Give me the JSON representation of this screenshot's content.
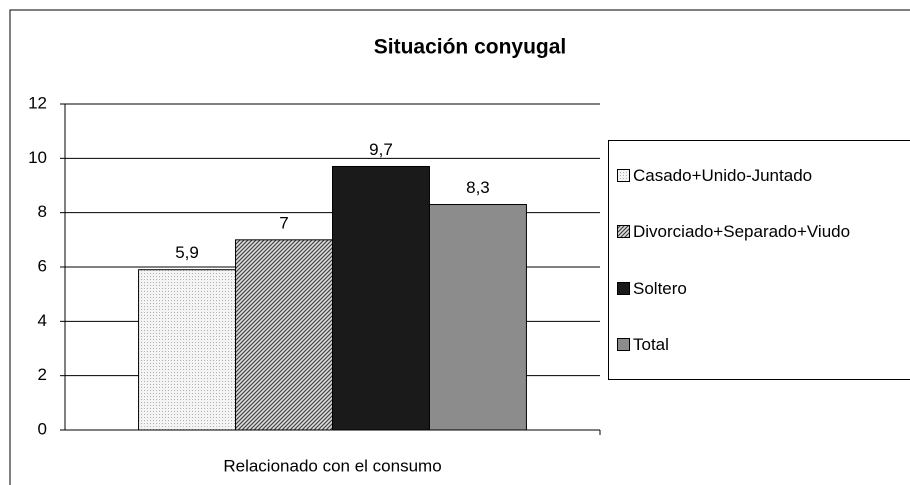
{
  "chart_data": {
    "type": "bar",
    "title": "Situación conyugal",
    "categories": [
      "Relacionado con el consumo"
    ],
    "series": [
      {
        "name": "Casado+Unido-Juntado",
        "color": "#e6e6e6",
        "pattern": "dots",
        "values": [
          5.9
        ],
        "value_labels": [
          "5,9"
        ]
      },
      {
        "name": "Divorciado+Separado+Viudo",
        "color": "#444444",
        "pattern": "diagonal",
        "values": [
          7
        ],
        "value_labels": [
          "7"
        ]
      },
      {
        "name": "Soltero",
        "color": "#1a1a1a",
        "pattern": "solid",
        "values": [
          9.7
        ],
        "value_labels": [
          "9,7"
        ]
      },
      {
        "name": "Total",
        "color": "#8c8c8c",
        "pattern": "solid",
        "values": [
          8.3
        ],
        "value_labels": [
          "8,3"
        ]
      }
    ],
    "ylim": [
      0,
      12
    ],
    "yticks": [
      0,
      2,
      4,
      6,
      8,
      10,
      12
    ],
    "grid": true,
    "legend": "right"
  }
}
